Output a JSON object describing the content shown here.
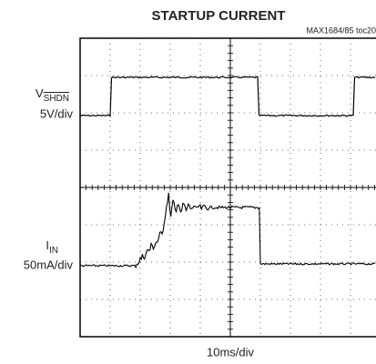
{
  "title": "STARTUP CURRENT",
  "note": "MAX1684/85 toc20",
  "channels": [
    {
      "symbol": "V",
      "subscript": "SHDN",
      "scale": "5V/div"
    },
    {
      "symbol": "I",
      "subscript": "IN",
      "scale": "50mA/div"
    }
  ],
  "time_scale": "10ms/div"
}
